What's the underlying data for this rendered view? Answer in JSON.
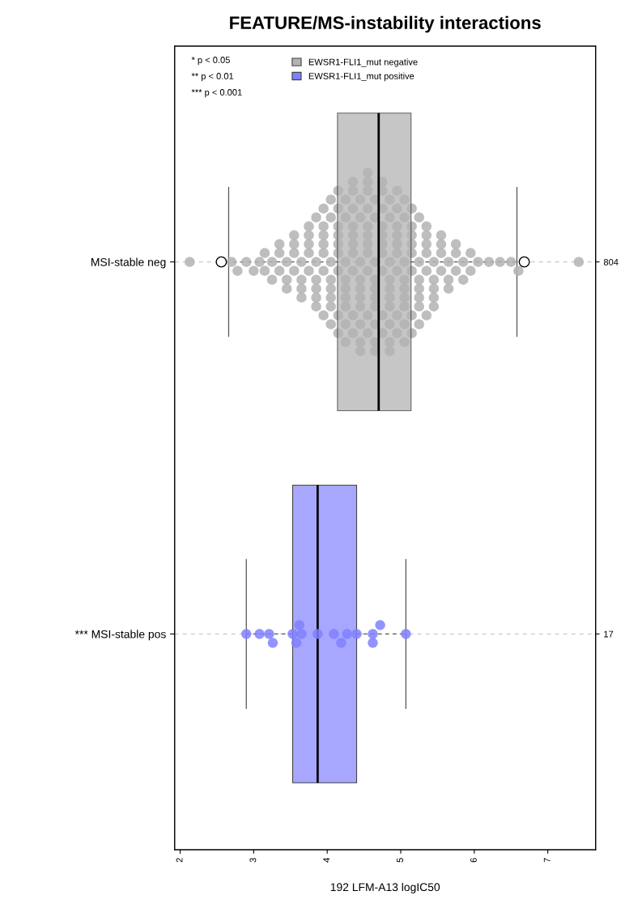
{
  "chart_data": {
    "type": "box",
    "orientation": "horizontal",
    "title": "FEATURE/MS-instability interactions",
    "xlabel": "192 LFM-A13 logIC50",
    "categories": [
      "MSI-stable neg",
      "*** MSI-stable pos"
    ],
    "colors": [
      "#b3b3b3",
      "#9e9eff"
    ],
    "boxes": [
      {
        "low": 2.66,
        "q1": 4.14,
        "median": 4.7,
        "q3": 5.14,
        "high": 6.58,
        "outliers": [
          2.56,
          6.68
        ]
      },
      {
        "low": 2.9,
        "q1": 3.53,
        "median": 3.87,
        "q3": 4.4,
        "high": 5.07
      }
    ],
    "series": [
      {
        "type": "scatter",
        "name": "EWSR1-FLI1_mut negative",
        "color": "#b3b3b3",
        "x": [
          "MSI-stable neg",
          "MSI-stable neg",
          "MSI-stable neg",
          "MSI-stable neg",
          "MSI-stable neg",
          "MSI-stable neg",
          "MSI-stable neg",
          "MSI-stable neg",
          "MSI-stable neg",
          "MSI-stable neg",
          "MSI-stable neg",
          "MSI-stable neg",
          "MSI-stable neg",
          "MSI-stable neg",
          "MSI-stable neg",
          "MSI-stable neg",
          "MSI-stable neg",
          "MSI-stable neg",
          "MSI-stable neg",
          "MSI-stable neg",
          "MSI-stable neg",
          "MSI-stable neg",
          "MSI-stable neg",
          "MSI-stable neg",
          "MSI-stable neg",
          "MSI-stable neg",
          "MSI-stable neg",
          "MSI-stable neg",
          "MSI-stable neg",
          "MSI-stable neg",
          "MSI-stable neg",
          "MSI-stable neg",
          "MSI-stable neg",
          "MSI-stable neg",
          "MSI-stable neg",
          "MSI-stable neg",
          "MSI-stable neg",
          "MSI-stable neg",
          "MSI-stable neg",
          "MSI-stable neg",
          "MSI-stable neg",
          "MSI-stable neg",
          "MSI-stable neg",
          "MSI-stable neg",
          "MSI-stable neg",
          "MSI-stable neg",
          "MSI-stable neg",
          "MSI-stable neg",
          "MSI-stable neg",
          "MSI-stable neg",
          "MSI-stable neg",
          "MSI-stable neg",
          "MSI-stable neg",
          "MSI-stable neg",
          "MSI-stable neg",
          "MSI-stable neg",
          "MSI-stable neg",
          "MSI-stable neg",
          "MSI-stable neg",
          "MSI-stable neg",
          "MSI-stable neg",
          "MSI-stable neg",
          "MSI-stable neg",
          "MSI-stable neg",
          "MSI-stable neg",
          "MSI-stable neg",
          "MSI-stable neg",
          "MSI-stable neg",
          "MSI-stable neg",
          "MSI-stable neg",
          "MSI-stable neg",
          "MSI-stable neg",
          "MSI-stable neg",
          "MSI-stable neg",
          "MSI-stable neg",
          "MSI-stable neg",
          "MSI-stable neg",
          "MSI-stable neg",
          "MSI-stable neg",
          "MSI-stable neg",
          "MSI-stable neg",
          "MSI-stable neg",
          "MSI-stable neg",
          "MSI-stable neg",
          "MSI-stable neg",
          "MSI-stable neg",
          "MSI-stable neg",
          "MSI-stable neg",
          "MSI-stable neg",
          "MSI-stable neg",
          "MSI-stable neg",
          "MSI-stable neg",
          "MSI-stable neg",
          "MSI-stable neg",
          "MSI-stable neg",
          "MSI-stable neg",
          "MSI-stable neg",
          "MSI-stable neg",
          "MSI-stable neg",
          "MSI-stable neg",
          "MSI-stable neg",
          "MSI-stable neg",
          "MSI-stable neg",
          "MSI-stable neg",
          "MSI-stable neg",
          "MSI-stable neg",
          "MSI-stable neg",
          "MSI-stable neg",
          "MSI-stable neg",
          "MSI-stable neg",
          "MSI-stable neg",
          "MSI-stable neg",
          "MSI-stable neg",
          "MSI-stable neg",
          "MSI-stable neg",
          "MSI-stable neg",
          "MSI-stable neg",
          "MSI-stable neg",
          "MSI-stable neg",
          "MSI-stable neg",
          "MSI-stable neg",
          "MSI-stable neg",
          "MSI-stable neg",
          "MSI-stable neg",
          "MSI-stable neg",
          "MSI-stable neg",
          "MSI-stable neg",
          "MSI-stable neg",
          "MSI-stable neg",
          "MSI-stable neg",
          "MSI-stable neg",
          "MSI-stable neg",
          "MSI-stable neg",
          "MSI-stable neg",
          "MSI-stable neg",
          "MSI-stable neg",
          "MSI-stable neg",
          "MSI-stable neg",
          "MSI-stable neg",
          "MSI-stable neg",
          "MSI-stable neg",
          "MSI-stable neg",
          "MSI-stable neg",
          "MSI-stable neg",
          "MSI-stable neg",
          "MSI-stable neg",
          "MSI-stable neg",
          "MSI-stable neg",
          "MSI-stable neg",
          "MSI-stable neg",
          "MSI-stable neg",
          "MSI-stable neg",
          "MSI-stable neg",
          "MSI-stable neg",
          "MSI-stable neg",
          "MSI-stable neg",
          "MSI-stable neg",
          "MSI-stable neg",
          "MSI-stable neg",
          "MSI-stable neg",
          "MSI-stable neg",
          "MSI-stable neg",
          "MSI-stable neg",
          "MSI-stable neg",
          "MSI-stable neg",
          "MSI-stable neg",
          "MSI-stable neg",
          "MSI-stable neg",
          "MSI-stable neg",
          "MSI-stable neg",
          "MSI-stable neg",
          "MSI-stable neg",
          "MSI-stable neg",
          "MSI-stable neg",
          "MSI-stable neg",
          "MSI-stable neg",
          "MSI-stable neg",
          "MSI-stable neg",
          "MSI-stable neg",
          "MSI-stable neg",
          "MSI-stable neg",
          "MSI-stable neg",
          "MSI-stable neg",
          "MSI-stable neg",
          "MSI-stable neg",
          "MSI-stable neg",
          "MSI-stable neg",
          "MSI-stable neg",
          "MSI-stable neg",
          "MSI-stable neg",
          "MSI-stable neg",
          "MSI-stable neg",
          "MSI-stable neg"
        ],
        "values": [
          2.13,
          2.7,
          2.78,
          2.9,
          3.0,
          3.08,
          3.15,
          3.15,
          3.25,
          3.25,
          3.35,
          3.35,
          3.35,
          3.45,
          3.45,
          3.45,
          3.55,
          3.55,
          3.55,
          3.55,
          3.65,
          3.65,
          3.65,
          3.65,
          3.75,
          3.75,
          3.75,
          3.75,
          3.75,
          3.85,
          3.85,
          3.85,
          3.85,
          3.85,
          3.85,
          3.95,
          3.95,
          3.95,
          3.95,
          3.95,
          3.95,
          3.95,
          4.05,
          4.05,
          4.05,
          4.05,
          4.05,
          4.05,
          4.05,
          4.05,
          4.15,
          4.15,
          4.15,
          4.15,
          4.15,
          4.15,
          4.15,
          4.15,
          4.15,
          4.25,
          4.25,
          4.25,
          4.25,
          4.25,
          4.25,
          4.25,
          4.25,
          4.25,
          4.35,
          4.35,
          4.35,
          4.35,
          4.35,
          4.35,
          4.35,
          4.35,
          4.35,
          4.35,
          4.45,
          4.45,
          4.45,
          4.45,
          4.45,
          4.45,
          4.45,
          4.45,
          4.45,
          4.45,
          4.55,
          4.55,
          4.55,
          4.55,
          4.55,
          4.55,
          4.55,
          4.55,
          4.55,
          4.55,
          4.55,
          4.65,
          4.65,
          4.65,
          4.65,
          4.65,
          4.65,
          4.65,
          4.65,
          4.65,
          4.65,
          4.75,
          4.75,
          4.75,
          4.75,
          4.75,
          4.75,
          4.75,
          4.75,
          4.75,
          4.75,
          4.85,
          4.85,
          4.85,
          4.85,
          4.85,
          4.85,
          4.85,
          4.85,
          4.85,
          4.85,
          4.95,
          4.95,
          4.95,
          4.95,
          4.95,
          4.95,
          4.95,
          4.95,
          4.95,
          5.05,
          5.05,
          5.05,
          5.05,
          5.05,
          5.05,
          5.05,
          5.05,
          5.05,
          5.15,
          5.15,
          5.15,
          5.15,
          5.15,
          5.15,
          5.15,
          5.15,
          5.25,
          5.25,
          5.25,
          5.25,
          5.25,
          5.25,
          5.25,
          5.35,
          5.35,
          5.35,
          5.35,
          5.35,
          5.35,
          5.45,
          5.45,
          5.45,
          5.45,
          5.45,
          5.55,
          5.55,
          5.55,
          5.55,
          5.65,
          5.65,
          5.65,
          5.75,
          5.75,
          5.75,
          5.85,
          5.85,
          5.95,
          5.95,
          6.05,
          6.2,
          6.35,
          6.5,
          6.6,
          7.42
        ]
      },
      {
        "type": "scatter",
        "name": "EWSR1-FLI1_mut positive",
        "color": "#8080ff",
        "x": [
          "*** MSI-stable pos",
          "*** MSI-stable pos",
          "*** MSI-stable pos",
          "*** MSI-stable pos",
          "*** MSI-stable pos",
          "*** MSI-stable pos",
          "*** MSI-stable pos",
          "*** MSI-stable pos",
          "*** MSI-stable pos",
          "*** MSI-stable pos",
          "*** MSI-stable pos",
          "*** MSI-stable pos",
          "*** MSI-stable pos",
          "*** MSI-stable pos",
          "*** MSI-stable pos",
          "*** MSI-stable pos",
          "*** MSI-stable pos"
        ],
        "values": [
          2.9,
          3.08,
          3.21,
          3.26,
          3.53,
          3.58,
          3.62,
          3.65,
          3.87,
          4.09,
          4.19,
          4.27,
          4.4,
          4.62,
          4.62,
          4.72,
          5.07
        ]
      }
    ],
    "xlim": [
      1.925,
      7.65
    ],
    "xticks": [
      2,
      3,
      4,
      5,
      6,
      7
    ],
    "grid": "y",
    "legend": "top left",
    "annotations": [
      "* p < 0.05",
      "** p < 0.01",
      "*** p < 0.001",
      "804",
      "17"
    ]
  }
}
